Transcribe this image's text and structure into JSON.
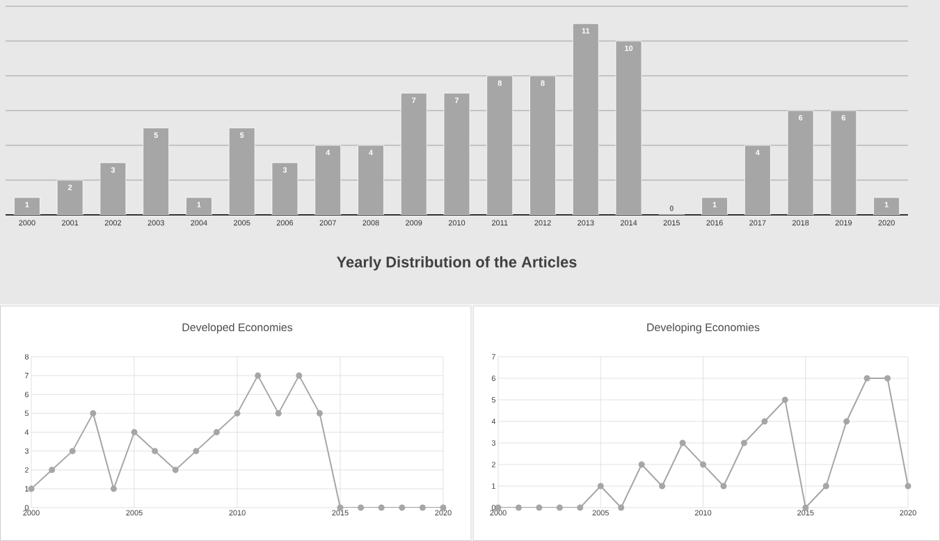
{
  "chart_data": [
    {
      "type": "bar",
      "title": "Yearly Distribution of the Articles",
      "categories": [
        "2000",
        "2001",
        "2002",
        "2003",
        "2004",
        "2005",
        "2006",
        "2007",
        "2008",
        "2009",
        "2010",
        "2011",
        "2012",
        "2013",
        "2014",
        "2015",
        "2016",
        "2017",
        "2018",
        "2019",
        "2020"
      ],
      "values": [
        1,
        2,
        3,
        5,
        1,
        5,
        3,
        4,
        4,
        7,
        7,
        8,
        8,
        11,
        10,
        0,
        1,
        4,
        6,
        6,
        1
      ],
      "color": "#a6a6a6",
      "data_labels": true,
      "ylim": [
        0,
        12
      ],
      "yticks": [
        {
          "value": 0,
          "label": null
        },
        {
          "value": 2,
          "label": null
        },
        {
          "value": 4,
          "label": null
        },
        {
          "value": 6,
          "label": null
        },
        {
          "value": 8,
          "label": null
        },
        {
          "value": 10,
          "label": null
        },
        {
          "value": 12,
          "label": null
        }
      ],
      "grid": "y",
      "tick_labels": "x"
    },
    {
      "type": "line",
      "title": "Developed Economies",
      "x": [
        2000,
        2001,
        2002,
        2003,
        2004,
        2005,
        2006,
        2007,
        2008,
        2009,
        2010,
        2011,
        2012,
        2013,
        2014,
        2015,
        2016,
        2017,
        2018,
        2019,
        2020
      ],
      "values": [
        1,
        2,
        3,
        5,
        1,
        4,
        3,
        2,
        3,
        4,
        5,
        7,
        5,
        7,
        5,
        0,
        0,
        0,
        0,
        0,
        0
      ],
      "color": "#a6a6a6",
      "marker": "circle",
      "xlim": [
        2000,
        2020
      ],
      "xticks": [
        2000,
        2005,
        2010,
        2015,
        2020
      ],
      "ylim": [
        0,
        8
      ],
      "yticks": [
        0,
        1,
        2,
        3,
        4,
        5,
        6,
        7,
        8
      ],
      "grid": true
    },
    {
      "type": "line",
      "title": "Developing Economies",
      "x": [
        2000,
        2001,
        2002,
        2003,
        2004,
        2005,
        2006,
        2007,
        2008,
        2009,
        2010,
        2011,
        2012,
        2013,
        2014,
        2015,
        2016,
        2017,
        2018,
        2019,
        2020
      ],
      "values": [
        0,
        0,
        0,
        0,
        0,
        1,
        0,
        2,
        1,
        3,
        2,
        1,
        3,
        4,
        5,
        0,
        1,
        4,
        6,
        6,
        1
      ],
      "color": "#a6a6a6",
      "marker": "circle",
      "xlim": [
        2000,
        2020
      ],
      "xticks": [
        2000,
        2005,
        2010,
        2015,
        2020
      ],
      "ylim": [
        0,
        7
      ],
      "yticks": [
        0,
        1,
        2,
        3,
        4,
        5,
        6,
        7
      ],
      "grid": true
    }
  ]
}
